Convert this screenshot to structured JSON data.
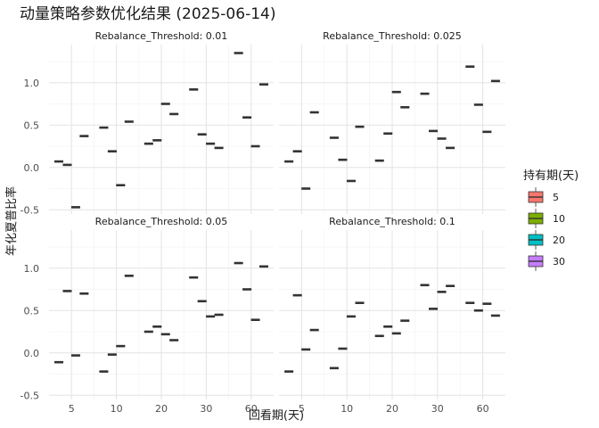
{
  "chart_data": {
    "type": "boxplot",
    "title": "动量策略参数优化结果 (2025-06-14)",
    "xlabel": "回看期(天)",
    "ylabel": "年化夏普比率",
    "x_ticks": [
      "5",
      "10",
      "20",
      "30",
      "60"
    ],
    "y_ticks": [
      "-0.5",
      "0.0",
      "0.5",
      "1.0"
    ],
    "ylim": [
      -0.55,
      1.45
    ],
    "grid": true,
    "legend": {
      "title": "持有期(天)",
      "position": "right",
      "entries": [
        {
          "label": "5",
          "color": "#F8766D"
        },
        {
          "label": "10",
          "color": "#7CAE00"
        },
        {
          "label": "20",
          "color": "#00BFC4"
        },
        {
          "label": "30",
          "color": "#C77CFF"
        }
      ]
    },
    "lookback_periods": [
      "5",
      "10",
      "20",
      "30",
      "60"
    ],
    "holding_periods": [
      "5",
      "10",
      "20",
      "30"
    ],
    "panels": [
      {
        "strip": "Rebalance_Threshold: 0.01",
        "values": [
          [
            0.07,
            0.03,
            -0.47,
            0.37
          ],
          [
            0.47,
            0.19,
            -0.21,
            0.54
          ],
          [
            0.28,
            0.32,
            0.75,
            0.63
          ],
          [
            0.92,
            0.39,
            0.28,
            0.23
          ],
          [
            1.35,
            0.59,
            0.25,
            0.98
          ]
        ]
      },
      {
        "strip": "Rebalance_Threshold: 0.025",
        "values": [
          [
            0.07,
            0.19,
            -0.25,
            0.65
          ],
          [
            0.35,
            0.09,
            -0.16,
            0.48
          ],
          [
            0.08,
            0.4,
            0.89,
            0.71
          ],
          [
            0.87,
            0.43,
            0.34,
            0.23
          ],
          [
            1.19,
            0.74,
            0.42,
            1.02
          ]
        ]
      },
      {
        "strip": "Rebalance_Threshold: 0.05",
        "values": [
          [
            -0.11,
            0.73,
            -0.03,
            0.7
          ],
          [
            -0.22,
            -0.02,
            0.08,
            0.91
          ],
          [
            0.25,
            0.31,
            0.22,
            0.15
          ],
          [
            0.89,
            0.61,
            0.43,
            0.45
          ],
          [
            1.06,
            0.75,
            0.39,
            1.02
          ]
        ]
      },
      {
        "strip": "Rebalance_Threshold: 0.1",
        "values": [
          [
            -0.22,
            0.68,
            0.04,
            0.27
          ],
          [
            -0.18,
            0.05,
            0.43,
            0.59
          ],
          [
            0.2,
            0.31,
            0.23,
            0.38
          ],
          [
            0.8,
            0.52,
            0.72,
            0.79
          ],
          [
            0.59,
            0.5,
            0.58,
            0.44
          ]
        ]
      }
    ]
  }
}
